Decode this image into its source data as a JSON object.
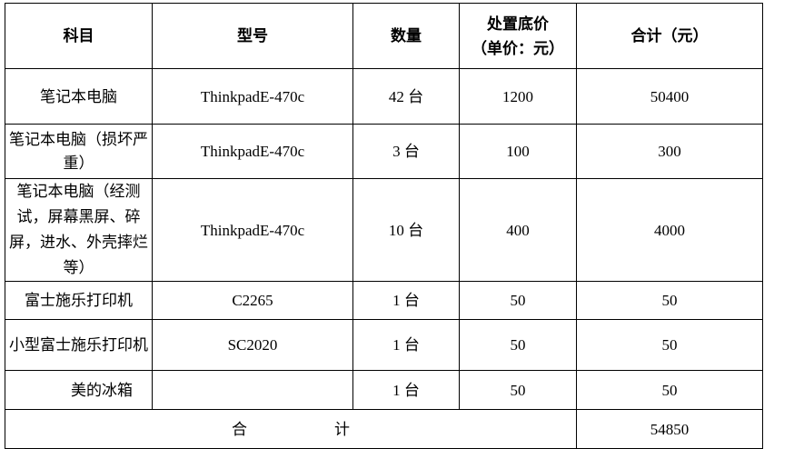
{
  "header": [
    "科目",
    "型号",
    "数量",
    "处置底价（单价：元）",
    "合计（元）"
  ],
  "header_price": {
    "line1": "处置底价",
    "line2": "（单价：元）"
  },
  "rows": [
    [
      "笔记本电脑",
      "ThinkpadE-470c",
      "42 台",
      "1200",
      "50400"
    ],
    [
      "笔记本电脑（损坏严重）",
      "ThinkpadE-470c",
      "3 台",
      "100",
      "300"
    ],
    [
      "笔记本电脑（经测试，屏幕黑屏、碎屏，进水、外壳摔烂等）",
      "ThinkpadE-470c",
      "10 台",
      "400",
      "4000"
    ],
    [
      "富士施乐打印机",
      "C2265",
      "1 台",
      "50",
      "50"
    ],
    [
      "小型富士施乐打印机",
      "SC2020",
      "1 台",
      "50",
      "50"
    ],
    [
      "美的冰箱",
      "",
      "1 台",
      "50",
      "50"
    ]
  ],
  "total": {
    "label_1": "合",
    "label_2": "计",
    "value": "54850"
  }
}
